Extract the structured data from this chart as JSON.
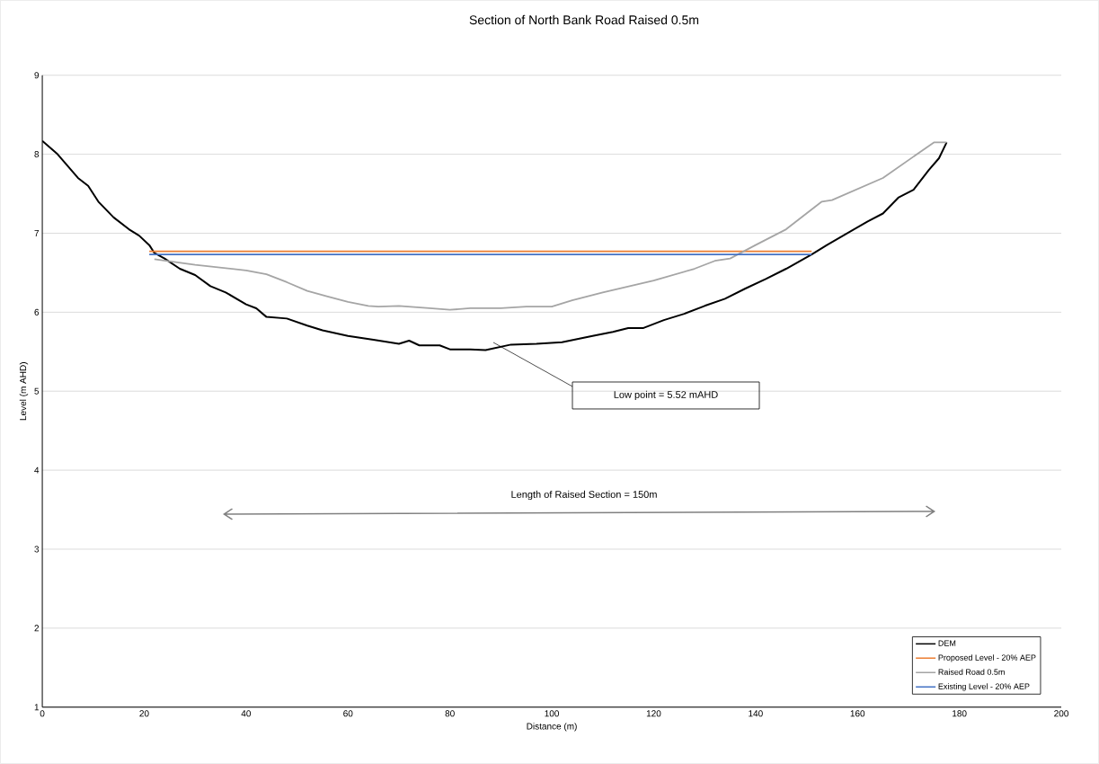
{
  "chart_data": {
    "type": "line",
    "title": "Section of North Bank Road Raised 0.5m",
    "xlabel": "Distance (m)",
    "ylabel": "Level (m AHD)",
    "xlim": [
      0,
      200
    ],
    "ylim": [
      1,
      9
    ],
    "xticks": [
      0,
      20,
      40,
      60,
      80,
      100,
      120,
      140,
      160,
      180,
      200
    ],
    "yticks": [
      1,
      2,
      3,
      4,
      5,
      6,
      7,
      8,
      9
    ],
    "grid": "y",
    "legend": "bottom right",
    "marker": "none",
    "line_style": "solid",
    "series": [
      {
        "name": "DEM",
        "color": "#000000",
        "x": [
          0,
          3,
          7,
          9,
          11,
          14,
          17,
          19,
          21,
          22,
          24,
          27,
          30,
          33,
          36,
          40,
          42,
          44,
          48,
          52,
          55,
          60,
          65,
          70,
          72,
          74,
          78,
          80,
          84,
          87,
          92,
          97,
          102,
          108,
          112,
          115,
          118,
          122,
          126,
          130,
          134,
          138,
          142,
          146,
          151,
          154,
          158,
          162,
          165,
          168,
          171,
          174,
          176,
          177.5
        ],
        "values": [
          8.17,
          8.0,
          7.7,
          7.6,
          7.4,
          7.2,
          7.05,
          6.97,
          6.85,
          6.75,
          6.68,
          6.55,
          6.47,
          6.33,
          6.25,
          6.1,
          6.05,
          5.94,
          5.92,
          5.83,
          5.77,
          5.7,
          5.65,
          5.6,
          5.64,
          5.58,
          5.58,
          5.53,
          5.53,
          5.52,
          5.59,
          5.6,
          5.62,
          5.7,
          5.75,
          5.8,
          5.8,
          5.9,
          5.98,
          6.08,
          6.17,
          6.3,
          6.42,
          6.55,
          6.73,
          6.85,
          7.0,
          7.15,
          7.25,
          7.45,
          7.55,
          7.8,
          7.95,
          8.15
        ]
      },
      {
        "name": "Proposed Level - 20% AEP",
        "color": "#ed7d31",
        "x": [
          21,
          151
        ],
        "values": [
          6.77,
          6.77
        ]
      },
      {
        "name": "Raised Road 0.5m",
        "color": "#a5a5a5",
        "x": [
          22,
          30,
          40,
          44,
          48,
          52,
          56,
          60,
          64,
          66,
          70,
          76,
          80,
          84,
          90,
          95,
          100,
          104,
          110,
          120,
          128,
          132,
          135,
          140,
          146,
          153,
          155,
          165,
          175,
          177.5
        ],
        "values": [
          6.67,
          6.6,
          6.53,
          6.48,
          6.38,
          6.27,
          6.2,
          6.13,
          6.08,
          6.07,
          6.08,
          6.05,
          6.03,
          6.05,
          6.05,
          6.07,
          6.07,
          6.15,
          6.25,
          6.4,
          6.55,
          6.65,
          6.68,
          6.85,
          7.05,
          7.4,
          7.42,
          7.7,
          8.15,
          8.15
        ]
      },
      {
        "name": "Existing Level - 20% AEP",
        "color": "#4472c4",
        "x": [
          21,
          151
        ],
        "values": [
          6.73,
          6.73
        ]
      }
    ],
    "annotations": [
      "Low point = 5.52 mAHD",
      "Length of Raised Section = 150m"
    ]
  }
}
